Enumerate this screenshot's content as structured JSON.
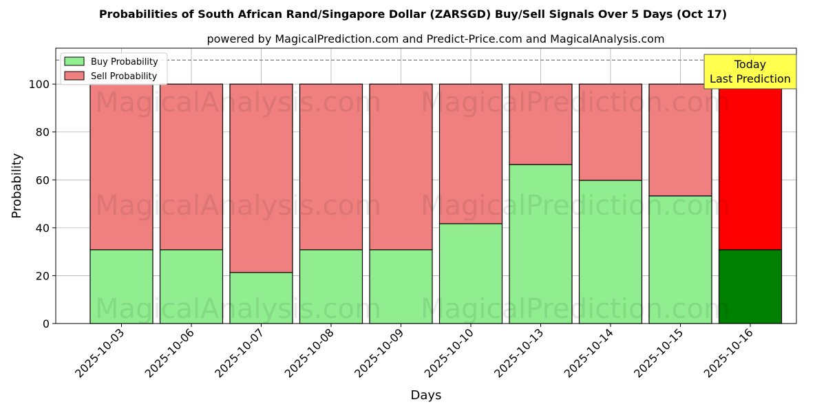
{
  "chart_data": {
    "type": "bar",
    "stacked": true,
    "title": "Probabilities of South African Rand/Singapore Dollar (ZARSGD) Buy/Sell Signals Over 5 Days (Oct 17)",
    "subtitle": "powered by MagicalPrediction.com and Predict-Price.com and MagicalAnalysis.com",
    "xlabel": "Days",
    "ylabel": "Probability",
    "ylim": [
      0,
      115
    ],
    "yticks": [
      "0",
      "20",
      "40",
      "60",
      "80",
      "100"
    ],
    "categories": [
      "2025-10-03",
      "2025-10-06",
      "2025-10-07",
      "2025-10-08",
      "2025-10-09",
      "2025-10-10",
      "2025-10-13",
      "2025-10-14",
      "2025-10-15",
      "2025-10-16"
    ],
    "series": [
      {
        "name": "Buy Probability",
        "color": "#90ee90",
        "highlight_color": "#008000",
        "values": [
          30.8,
          30.8,
          21.3,
          30.8,
          30.8,
          41.7,
          66.4,
          59.8,
          53.3,
          30.8
        ]
      },
      {
        "name": "Sell Probability",
        "color": "#f08080",
        "highlight_color": "#ff0000",
        "values": [
          69.2,
          69.2,
          78.7,
          69.2,
          69.2,
          58.3,
          33.6,
          40.2,
          46.7,
          69.2
        ]
      }
    ],
    "reference_line": 110,
    "highlight_index": 9,
    "annotation": {
      "lines": [
        "Today",
        "Last Prediction"
      ],
      "color": "#ffff4d"
    },
    "legend_position": "top-left",
    "grid": true,
    "watermarks": [
      "MagicalAnalysis.com",
      "MagicalPrediction.com"
    ]
  }
}
